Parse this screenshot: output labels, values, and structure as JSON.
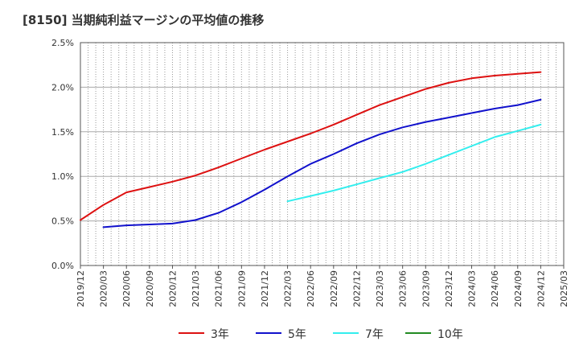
{
  "chart_data": {
    "type": "line",
    "title": "[8150]  当期純利益マージンの平均値の推移",
    "xlabel": "",
    "ylabel": "",
    "x": [
      "2019/12",
      "2020/03",
      "2020/06",
      "2020/09",
      "2020/12",
      "2021/03",
      "2021/06",
      "2021/09",
      "2021/12",
      "2022/03",
      "2022/06",
      "2022/09",
      "2022/12",
      "2023/03",
      "2023/06",
      "2023/09",
      "2023/12",
      "2024/03",
      "2024/06",
      "2024/09",
      "2024/12",
      "2025/03"
    ],
    "ylim": [
      0,
      2.5
    ],
    "yticks": [
      "0.0%",
      "0.5%",
      "1.0%",
      "1.5%",
      "2.0%",
      "2.5%"
    ],
    "grid": true,
    "legend_position": "bottom",
    "series": [
      {
        "name": "3年",
        "color": "#dd1111",
        "values": [
          0.51,
          0.68,
          0.82,
          0.88,
          0.94,
          1.01,
          1.1,
          1.2,
          1.3,
          1.39,
          1.48,
          1.58,
          1.69,
          1.8,
          1.89,
          1.98,
          2.05,
          2.1,
          2.13,
          2.15,
          2.17,
          null
        ]
      },
      {
        "name": "5年",
        "color": "#1111cc",
        "values": [
          null,
          0.43,
          0.45,
          0.46,
          0.47,
          0.51,
          0.59,
          0.71,
          0.85,
          1.0,
          1.14,
          1.25,
          1.37,
          1.47,
          1.55,
          1.61,
          1.66,
          1.71,
          1.76,
          1.8,
          1.86,
          null
        ]
      },
      {
        "name": "7年",
        "color": "#33eeee",
        "values": [
          null,
          null,
          null,
          null,
          null,
          null,
          null,
          null,
          null,
          0.72,
          0.78,
          0.84,
          0.91,
          0.98,
          1.05,
          1.14,
          1.24,
          1.34,
          1.44,
          1.51,
          1.58,
          null
        ]
      },
      {
        "name": "10年",
        "color": "#228b22",
        "values": [
          null,
          null,
          null,
          null,
          null,
          null,
          null,
          null,
          null,
          null,
          null,
          null,
          null,
          null,
          null,
          null,
          null,
          null,
          null,
          null,
          null,
          null
        ]
      }
    ]
  }
}
